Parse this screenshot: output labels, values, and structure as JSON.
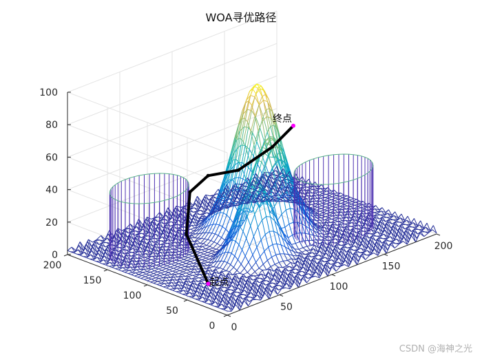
{
  "chart_data": {
    "type": "surface3d",
    "title": "WOA寻优路径",
    "xlabel": "",
    "ylabel": "",
    "zlabel": "",
    "xlim": [
      0,
      200
    ],
    "ylim": [
      0,
      200
    ],
    "zlim": [
      0,
      100
    ],
    "x_ticks": [
      "0",
      "50",
      "100",
      "150",
      "200"
    ],
    "y_ticks": [
      "0",
      "50",
      "100",
      "150",
      "200"
    ],
    "z_ticks": [
      "0",
      "20",
      "40",
      "60",
      "80",
      "100"
    ],
    "grid": true,
    "peaks": [
      {
        "x": 120,
        "y": 120,
        "height": 90
      },
      {
        "x": 110,
        "y": 90,
        "height": 65
      },
      {
        "x": 80,
        "y": 70,
        "height": 50
      }
    ],
    "cylinders": [
      {
        "x": 40,
        "y": 150,
        "r": 30,
        "height": 40
      },
      {
        "x": 155,
        "y": 70,
        "r": 30,
        "height": 38
      }
    ],
    "path_points": [
      {
        "x": 20,
        "y": 50,
        "z": 5
      },
      {
        "x": 45,
        "y": 110,
        "z": 18
      },
      {
        "x": 75,
        "y": 145,
        "z": 30
      },
      {
        "x": 100,
        "y": 155,
        "z": 32
      },
      {
        "x": 125,
        "y": 150,
        "z": 30
      },
      {
        "x": 150,
        "y": 140,
        "z": 40
      },
      {
        "x": 170,
        "y": 140,
        "z": 48
      }
    ],
    "start_label": "起点",
    "end_label": "终点"
  },
  "watermark": "CSDN @海神之光"
}
